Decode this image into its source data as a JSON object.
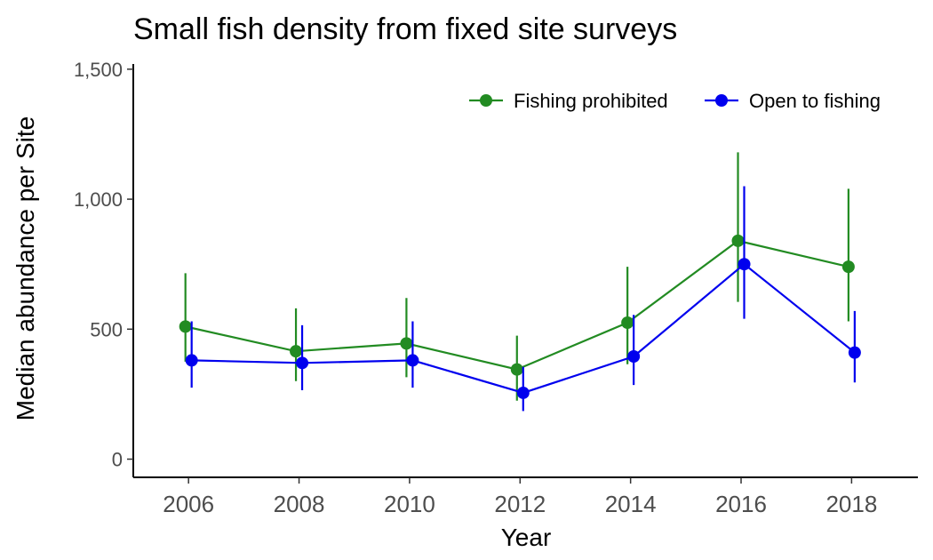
{
  "chart_data": {
    "type": "line",
    "title": "Small fish density from fixed site surveys",
    "xlabel": "Year",
    "ylabel": "Median abundance per Site",
    "x": [
      2006,
      2008,
      2010,
      2012,
      2014,
      2016,
      2018
    ],
    "xticks": [
      "2006",
      "2008",
      "2010",
      "2012",
      "2014",
      "2016",
      "2018"
    ],
    "xlim": [
      2005,
      2019.2
    ],
    "ylim": [
      -70,
      1520
    ],
    "yticks": [
      0,
      500,
      1000,
      1500
    ],
    "ytick_labels": [
      "0",
      "500",
      "1,000",
      "1,500"
    ],
    "grid": false,
    "legend_position": "top-right",
    "series": [
      {
        "name": "Fishing prohibited",
        "color": "#228B22",
        "values": [
          510,
          415,
          445,
          345,
          525,
          840,
          740
        ],
        "lower": [
          375,
          300,
          315,
          225,
          365,
          605,
          530
        ],
        "upper": [
          715,
          580,
          620,
          475,
          740,
          1180,
          1040
        ]
      },
      {
        "name": "Open to fishing",
        "color": "#0000EE",
        "values": [
          380,
          370,
          380,
          255,
          395,
          750,
          410
        ],
        "lower": [
          275,
          265,
          275,
          185,
          285,
          540,
          295
        ],
        "upper": [
          530,
          515,
          530,
          355,
          555,
          1050,
          570
        ]
      }
    ]
  }
}
